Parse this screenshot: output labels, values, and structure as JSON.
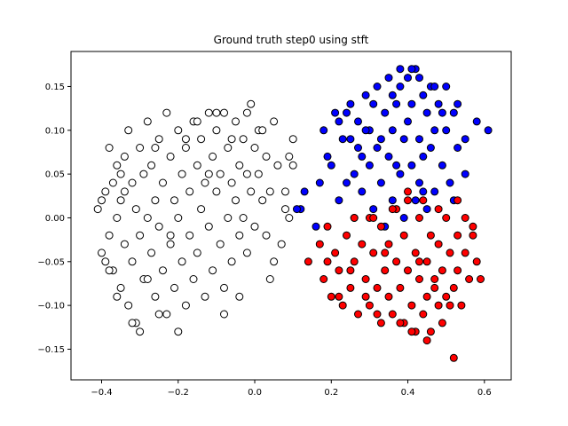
{
  "chart_data": {
    "type": "scatter",
    "title": "Ground truth step0 using stft",
    "xlabel": "",
    "ylabel": "",
    "xlim": [
      -0.48,
      0.67
    ],
    "ylim": [
      -0.185,
      0.19
    ],
    "xticks": [
      -0.4,
      -0.2,
      0.0,
      0.2,
      0.4,
      0.6
    ],
    "xtick_labels": [
      "−0.4",
      "−0.2",
      "0.0",
      "0.2",
      "0.4",
      "0.6"
    ],
    "yticks": [
      -0.15,
      -0.1,
      -0.05,
      0.0,
      0.05,
      0.1,
      0.15
    ],
    "ytick_labels": [
      "−0.15",
      "−0.10",
      "−0.05",
      "0.00",
      "0.05",
      "0.10",
      "0.15"
    ],
    "grid": false,
    "legend": "none",
    "series": [
      {
        "color": "#ffffff",
        "points": [
          [
            -0.41,
            0.01
          ],
          [
            -0.4,
            -0.04
          ],
          [
            -0.39,
            0.03
          ],
          [
            -0.38,
            0.08
          ],
          [
            -0.38,
            -0.02
          ],
          [
            -0.37,
            0.04
          ],
          [
            -0.37,
            -0.06
          ],
          [
            -0.36,
            0.0
          ],
          [
            -0.36,
            0.06
          ],
          [
            -0.35,
            -0.08
          ],
          [
            -0.35,
            0.02
          ],
          [
            -0.34,
            0.07
          ],
          [
            -0.34,
            -0.03
          ],
          [
            -0.33,
            0.1
          ],
          [
            -0.33,
            -0.1
          ],
          [
            -0.32,
            0.04
          ],
          [
            -0.32,
            -0.05
          ],
          [
            -0.31,
            0.01
          ],
          [
            -0.31,
            -0.12
          ],
          [
            -0.3,
            0.08
          ],
          [
            -0.3,
            -0.02
          ],
          [
            -0.29,
            0.05
          ],
          [
            -0.29,
            -0.07
          ],
          [
            -0.28,
            0.11
          ],
          [
            -0.28,
            0.0
          ],
          [
            -0.27,
            -0.04
          ],
          [
            -0.27,
            0.06
          ],
          [
            -0.26,
            -0.09
          ],
          [
            -0.26,
            0.02
          ],
          [
            -0.25,
            0.09
          ],
          [
            -0.25,
            -0.01
          ],
          [
            -0.24,
            0.04
          ],
          [
            -0.24,
            -0.06
          ],
          [
            -0.23,
            0.12
          ],
          [
            -0.23,
            -0.11
          ],
          [
            -0.22,
            0.07
          ],
          [
            -0.22,
            -0.03
          ],
          [
            -0.21,
            0.02
          ],
          [
            -0.21,
            -0.08
          ],
          [
            -0.2,
            0.1
          ],
          [
            -0.2,
            0.0
          ],
          [
            -0.19,
            -0.05
          ],
          [
            -0.19,
            0.05
          ],
          [
            -0.18,
            0.08
          ],
          [
            -0.18,
            -0.1
          ],
          [
            -0.17,
            0.03
          ],
          [
            -0.17,
            -0.02
          ],
          [
            -0.16,
            0.11
          ],
          [
            -0.16,
            -0.07
          ],
          [
            -0.15,
            0.06
          ],
          [
            -0.15,
            -0.04
          ],
          [
            -0.14,
            0.01
          ],
          [
            -0.14,
            0.09
          ],
          [
            -0.13,
            -0.09
          ],
          [
            -0.13,
            0.04
          ],
          [
            -0.12,
            0.12
          ],
          [
            -0.12,
            -0.01
          ],
          [
            -0.11,
            0.07
          ],
          [
            -0.11,
            -0.06
          ],
          [
            -0.1,
            0.03
          ],
          [
            -0.1,
            0.1
          ],
          [
            -0.09,
            -0.03
          ],
          [
            -0.09,
            0.05
          ],
          [
            -0.08,
            0.12
          ],
          [
            -0.08,
            -0.08
          ],
          [
            -0.07,
            0.08
          ],
          [
            -0.07,
            0.0
          ],
          [
            -0.06,
            0.04
          ],
          [
            -0.06,
            -0.05
          ],
          [
            -0.05,
            0.11
          ],
          [
            -0.05,
            0.02
          ],
          [
            -0.04,
            0.06
          ],
          [
            -0.04,
            -0.02
          ],
          [
            -0.03,
            0.09
          ],
          [
            -0.03,
            0.0
          ],
          [
            -0.02,
            0.05
          ],
          [
            -0.02,
            -0.04
          ],
          [
            -0.01,
            0.13
          ],
          [
            -0.01,
            0.03
          ],
          [
            0.0,
            0.08
          ],
          [
            0.0,
            -0.01
          ],
          [
            0.01,
            0.05
          ],
          [
            0.01,
            0.1
          ],
          [
            0.02,
            0.02
          ],
          [
            0.03,
            0.07
          ],
          [
            0.04,
            0.03
          ],
          [
            0.05,
            0.11
          ],
          [
            0.06,
            0.06
          ],
          [
            0.08,
            0.01
          ],
          [
            0.09,
            0.07
          ],
          [
            0.1,
            0.06
          ],
          [
            0.1,
            0.09
          ],
          [
            0.08,
            0.03
          ],
          [
            0.05,
            -0.05
          ],
          [
            0.04,
            -0.07
          ],
          [
            0.09,
            0.0
          ],
          [
            0.07,
            -0.03
          ],
          [
            0.03,
            -0.02
          ],
          [
            -0.25,
            -0.11
          ],
          [
            -0.2,
            -0.13
          ],
          [
            -0.3,
            -0.13
          ],
          [
            -0.32,
            -0.12
          ],
          [
            -0.08,
            -0.11
          ],
          [
            -0.04,
            -0.09
          ],
          [
            -0.18,
            0.09
          ],
          [
            -0.15,
            0.11
          ],
          [
            -0.1,
            0.12
          ],
          [
            -0.36,
            -0.09
          ],
          [
            -0.39,
            -0.05
          ],
          [
            -0.4,
            0.02
          ],
          [
            -0.38,
            -0.06
          ],
          [
            -0.34,
            0.03
          ],
          [
            -0.28,
            -0.07
          ],
          [
            -0.22,
            -0.02
          ],
          [
            -0.12,
            0.05
          ],
          [
            -0.06,
            0.09
          ],
          [
            -0.02,
            0.12
          ],
          [
            0.02,
            0.1
          ],
          [
            -0.35,
            0.05
          ],
          [
            -0.26,
            0.08
          ]
        ]
      },
      {
        "color": "#0000ff",
        "points": [
          [
            0.18,
            0.1
          ],
          [
            0.2,
            0.06
          ],
          [
            0.21,
            0.12
          ],
          [
            0.22,
            0.02
          ],
          [
            0.23,
            0.09
          ],
          [
            0.24,
            0.04
          ],
          [
            0.25,
            0.13
          ],
          [
            0.26,
            0.0
          ],
          [
            0.27,
            0.08
          ],
          [
            0.27,
            0.11
          ],
          [
            0.28,
            0.03
          ],
          [
            0.29,
            0.14
          ],
          [
            0.3,
            0.06
          ],
          [
            0.3,
            0.1
          ],
          [
            0.31,
            0.01
          ],
          [
            0.32,
            0.15
          ],
          [
            0.32,
            0.08
          ],
          [
            0.33,
            0.04
          ],
          [
            0.34,
            0.12
          ],
          [
            0.34,
            -0.01
          ],
          [
            0.35,
            0.16
          ],
          [
            0.35,
            0.07
          ],
          [
            0.36,
            0.1
          ],
          [
            0.36,
            0.02
          ],
          [
            0.37,
            0.13
          ],
          [
            0.38,
            0.05
          ],
          [
            0.38,
            0.15
          ],
          [
            0.39,
            0.09
          ],
          [
            0.39,
            0.0
          ],
          [
            0.4,
            0.16
          ],
          [
            0.4,
            0.11
          ],
          [
            0.41,
            0.06
          ],
          [
            0.41,
            0.13
          ],
          [
            0.42,
            0.02
          ],
          [
            0.42,
            0.17
          ],
          [
            0.43,
            0.09
          ],
          [
            0.43,
            0.04
          ],
          [
            0.44,
            0.14
          ],
          [
            0.44,
            0.07
          ],
          [
            0.45,
            0.12
          ],
          [
            0.45,
            0.01
          ],
          [
            0.46,
            0.15
          ],
          [
            0.46,
            0.08
          ],
          [
            0.47,
            0.1
          ],
          [
            0.47,
            0.03
          ],
          [
            0.48,
            0.13
          ],
          [
            0.49,
            0.06
          ],
          [
            0.5,
            0.15
          ],
          [
            0.5,
            0.1
          ],
          [
            0.51,
            0.04
          ],
          [
            0.52,
            0.12
          ],
          [
            0.53,
            0.08
          ],
          [
            0.53,
            0.13
          ],
          [
            0.55,
            0.09
          ],
          [
            0.58,
            0.11
          ],
          [
            0.61,
            0.1
          ],
          [
            0.55,
            0.05
          ],
          [
            0.52,
            0.02
          ],
          [
            0.13,
            0.03
          ],
          [
            0.12,
            0.01
          ],
          [
            0.11,
            0.01
          ],
          [
            0.16,
            -0.01
          ],
          [
            0.17,
            0.04
          ],
          [
            0.19,
            0.07
          ],
          [
            0.24,
            0.12
          ],
          [
            0.26,
            0.05
          ],
          [
            0.29,
            0.1
          ],
          [
            0.31,
            0.13
          ],
          [
            0.33,
            0.09
          ],
          [
            0.37,
            0.06
          ],
          [
            0.41,
            0.17
          ],
          [
            0.38,
            0.17
          ],
          [
            0.44,
            0.03
          ],
          [
            0.47,
            0.15
          ],
          [
            0.49,
            0.12
          ],
          [
            0.36,
            0.14
          ],
          [
            0.28,
            0.07
          ],
          [
            0.25,
            0.09
          ],
          [
            0.22,
            0.11
          ],
          [
            0.43,
            0.16
          ]
        ]
      },
      {
        "color": "#ff0000",
        "points": [
          [
            0.14,
            -0.05
          ],
          [
            0.17,
            -0.03
          ],
          [
            0.18,
            -0.07
          ],
          [
            0.19,
            -0.01
          ],
          [
            0.2,
            -0.09
          ],
          [
            0.21,
            -0.04
          ],
          [
            0.22,
            -0.06
          ],
          [
            0.23,
            -0.1
          ],
          [
            0.24,
            -0.02
          ],
          [
            0.25,
            -0.08
          ],
          [
            0.26,
            -0.05
          ],
          [
            0.27,
            -0.11
          ],
          [
            0.28,
            -0.03
          ],
          [
            0.29,
            -0.07
          ],
          [
            0.3,
            0.0
          ],
          [
            0.3,
            -0.1
          ],
          [
            0.31,
            -0.04
          ],
          [
            0.32,
            -0.08
          ],
          [
            0.33,
            -0.12
          ],
          [
            0.33,
            -0.01
          ],
          [
            0.34,
            -0.06
          ],
          [
            0.35,
            -0.09
          ],
          [
            0.35,
            -0.03
          ],
          [
            0.36,
            -0.11
          ],
          [
            0.37,
            -0.05
          ],
          [
            0.37,
            0.01
          ],
          [
            0.38,
            -0.08
          ],
          [
            0.39,
            -0.02
          ],
          [
            0.39,
            -0.12
          ],
          [
            0.4,
            -0.06
          ],
          [
            0.4,
            0.02
          ],
          [
            0.41,
            -0.1
          ],
          [
            0.42,
            -0.04
          ],
          [
            0.42,
            -0.13
          ],
          [
            0.43,
            -0.07
          ],
          [
            0.43,
            0.0
          ],
          [
            0.44,
            -0.11
          ],
          [
            0.45,
            -0.05
          ],
          [
            0.45,
            -0.09
          ],
          [
            0.46,
            -0.02
          ],
          [
            0.46,
            -0.13
          ],
          [
            0.47,
            -0.07
          ],
          [
            0.48,
            -0.03
          ],
          [
            0.48,
            -0.1
          ],
          [
            0.49,
            -0.06
          ],
          [
            0.5,
            0.0
          ],
          [
            0.5,
            -0.09
          ],
          [
            0.51,
            -0.04
          ],
          [
            0.52,
            -0.08
          ],
          [
            0.53,
            -0.02
          ],
          [
            0.53,
            -0.06
          ],
          [
            0.54,
            -0.1
          ],
          [
            0.55,
            -0.04
          ],
          [
            0.56,
            -0.07
          ],
          [
            0.57,
            -0.01
          ],
          [
            0.58,
            -0.05
          ],
          [
            0.59,
            -0.07
          ],
          [
            0.52,
            -0.16
          ],
          [
            0.45,
            -0.14
          ],
          [
            0.41,
            -0.13
          ],
          [
            0.36,
            0.01
          ],
          [
            0.31,
            0.0
          ],
          [
            0.26,
            0.0
          ],
          [
            0.4,
            0.03
          ],
          [
            0.44,
            0.02
          ],
          [
            0.48,
            0.01
          ],
          [
            0.53,
            0.02
          ],
          [
            0.55,
            0.0
          ],
          [
            0.57,
            -0.02
          ],
          [
            0.49,
            -0.12
          ],
          [
            0.38,
            -0.12
          ],
          [
            0.32,
            -0.11
          ],
          [
            0.22,
            -0.09
          ],
          [
            0.19,
            -0.05
          ],
          [
            0.25,
            -0.06
          ],
          [
            0.29,
            -0.09
          ],
          [
            0.34,
            -0.04
          ],
          [
            0.47,
            -0.08
          ],
          [
            0.51,
            -0.1
          ],
          [
            0.43,
            -0.05
          ]
        ]
      }
    ]
  }
}
